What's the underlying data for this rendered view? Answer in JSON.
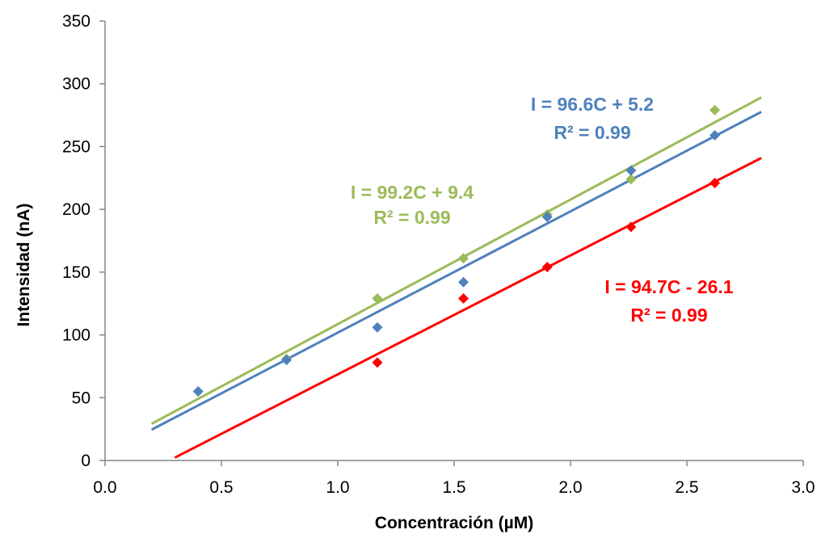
{
  "chart_data": {
    "type": "scatter",
    "title": "",
    "xlabel": "Concentración (µM)",
    "ylabel": "Intensidad (nA)",
    "xlim": [
      0.0,
      3.0
    ],
    "ylim": [
      0,
      350
    ],
    "x_ticks": [
      "0.0",
      "0.5",
      "1.0",
      "1.5",
      "2.0",
      "2.5",
      "3.0"
    ],
    "y_ticks": [
      "0",
      "50",
      "100",
      "150",
      "200",
      "250",
      "300",
      "350"
    ],
    "grid": false,
    "legend": "none",
    "series": [
      {
        "color": "#9BBB59",
        "points": [
          [
            0.4,
            55
          ],
          [
            0.78,
            81
          ],
          [
            1.17,
            129
          ],
          [
            1.54,
            161
          ],
          [
            1.9,
            196
          ],
          [
            2.26,
            224
          ],
          [
            2.62,
            279
          ]
        ],
        "trendline": {
          "slope": 99.2,
          "intercept": 9.4,
          "x_range": [
            0.2,
            2.82
          ]
        },
        "annotation": {
          "equation": "I = 99.2C + 9.4",
          "r2": "R² = 0.99"
        }
      },
      {
        "color": "#4F81BD",
        "points": [
          [
            0.4,
            55
          ],
          [
            0.78,
            80
          ],
          [
            1.17,
            106
          ],
          [
            1.54,
            142
          ],
          [
            1.9,
            194
          ],
          [
            2.26,
            231
          ],
          [
            2.62,
            259
          ]
        ],
        "trendline": {
          "slope": 96.6,
          "intercept": 5.2,
          "x_range": [
            0.2,
            2.82
          ]
        },
        "annotation": {
          "equation": "I = 96.6C + 5.2",
          "r2": "R² = 0.99"
        }
      },
      {
        "color": "#FF0000",
        "points": [
          [
            1.17,
            78
          ],
          [
            1.54,
            129
          ],
          [
            1.9,
            154
          ],
          [
            2.26,
            186
          ],
          [
            2.62,
            221
          ]
        ],
        "trendline": {
          "slope": 94.7,
          "intercept": -26.1,
          "x_range": [
            0.3,
            2.82
          ]
        },
        "annotation": {
          "equation": "I = 94.7C - 26.1",
          "r2": "R² = 0.99"
        }
      }
    ]
  }
}
